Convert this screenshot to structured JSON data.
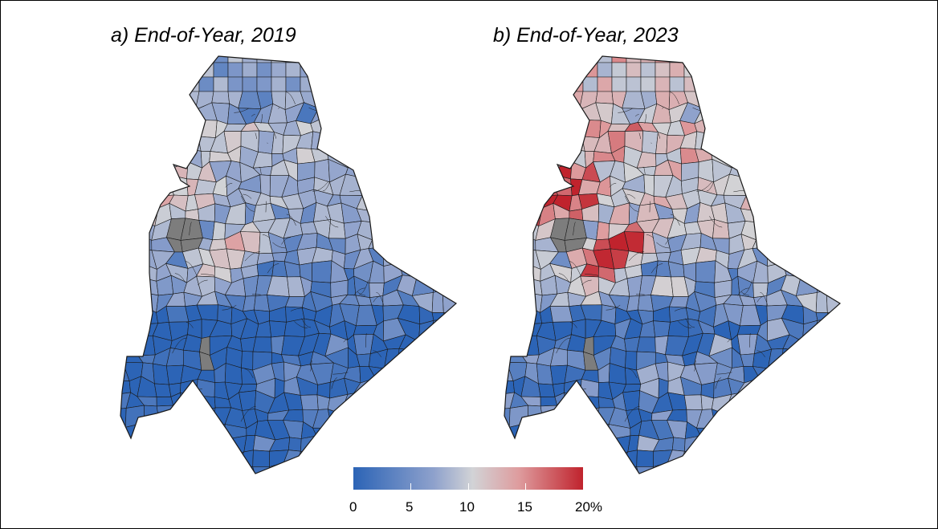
{
  "panels": [
    {
      "title": "a) End-of-Year, 2019"
    },
    {
      "title": "b) End-of-Year, 2023"
    }
  ],
  "legend": {
    "labels": [
      "0",
      "5",
      "10",
      "15",
      "20%"
    ],
    "min": 0,
    "max": 20,
    "colors": [
      "#2c64b6",
      "#8ea1cc",
      "#d2d3d6",
      "#de9c9e",
      "#c0232d"
    ]
  },
  "colors": {
    "no_data": "#7d7d7d",
    "border": "#1a1a1a"
  }
}
